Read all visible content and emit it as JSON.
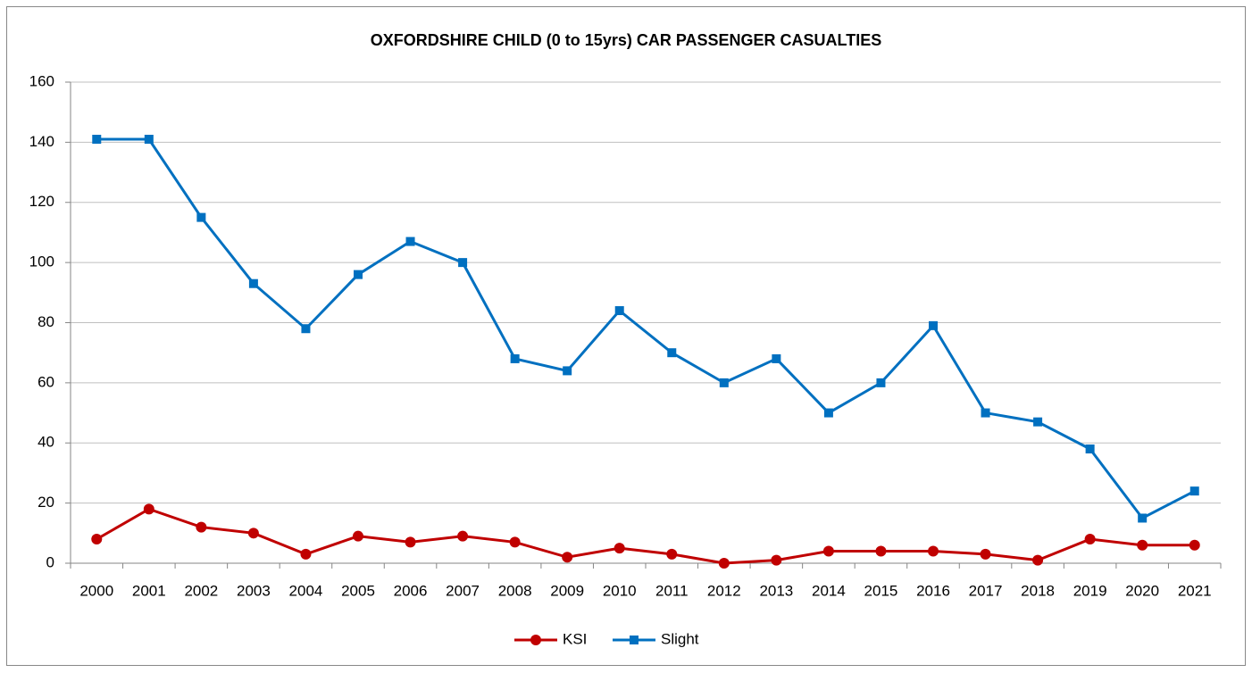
{
  "chart_data": {
    "type": "line",
    "title": "OXFORDSHIRE CHILD (0 to 15yrs) CAR PASSENGER CASUALTIES",
    "categories": [
      "2000",
      "2001",
      "2002",
      "2003",
      "2004",
      "2005",
      "2006",
      "2007",
      "2008",
      "2009",
      "2010",
      "2011",
      "2012",
      "2013",
      "2014",
      "2015",
      "2016",
      "2017",
      "2018",
      "2019",
      "2020",
      "2021"
    ],
    "series": [
      {
        "name": "KSI",
        "color": "#c00000",
        "marker": "circle",
        "values": [
          8,
          18,
          12,
          10,
          3,
          9,
          7,
          9,
          7,
          2,
          5,
          3,
          0,
          1,
          4,
          4,
          4,
          3,
          1,
          8,
          6,
          6
        ]
      },
      {
        "name": "Slight",
        "color": "#0070c0",
        "marker": "square",
        "values": [
          141,
          141,
          115,
          93,
          78,
          96,
          107,
          100,
          68,
          64,
          84,
          70,
          60,
          68,
          50,
          60,
          79,
          50,
          47,
          38,
          15,
          24
        ]
      }
    ],
    "ylim": [
      0,
      160
    ],
    "yticks": [
      0,
      20,
      40,
      60,
      80,
      100,
      120,
      140,
      160
    ],
    "grid": true,
    "legend": "bottom"
  }
}
